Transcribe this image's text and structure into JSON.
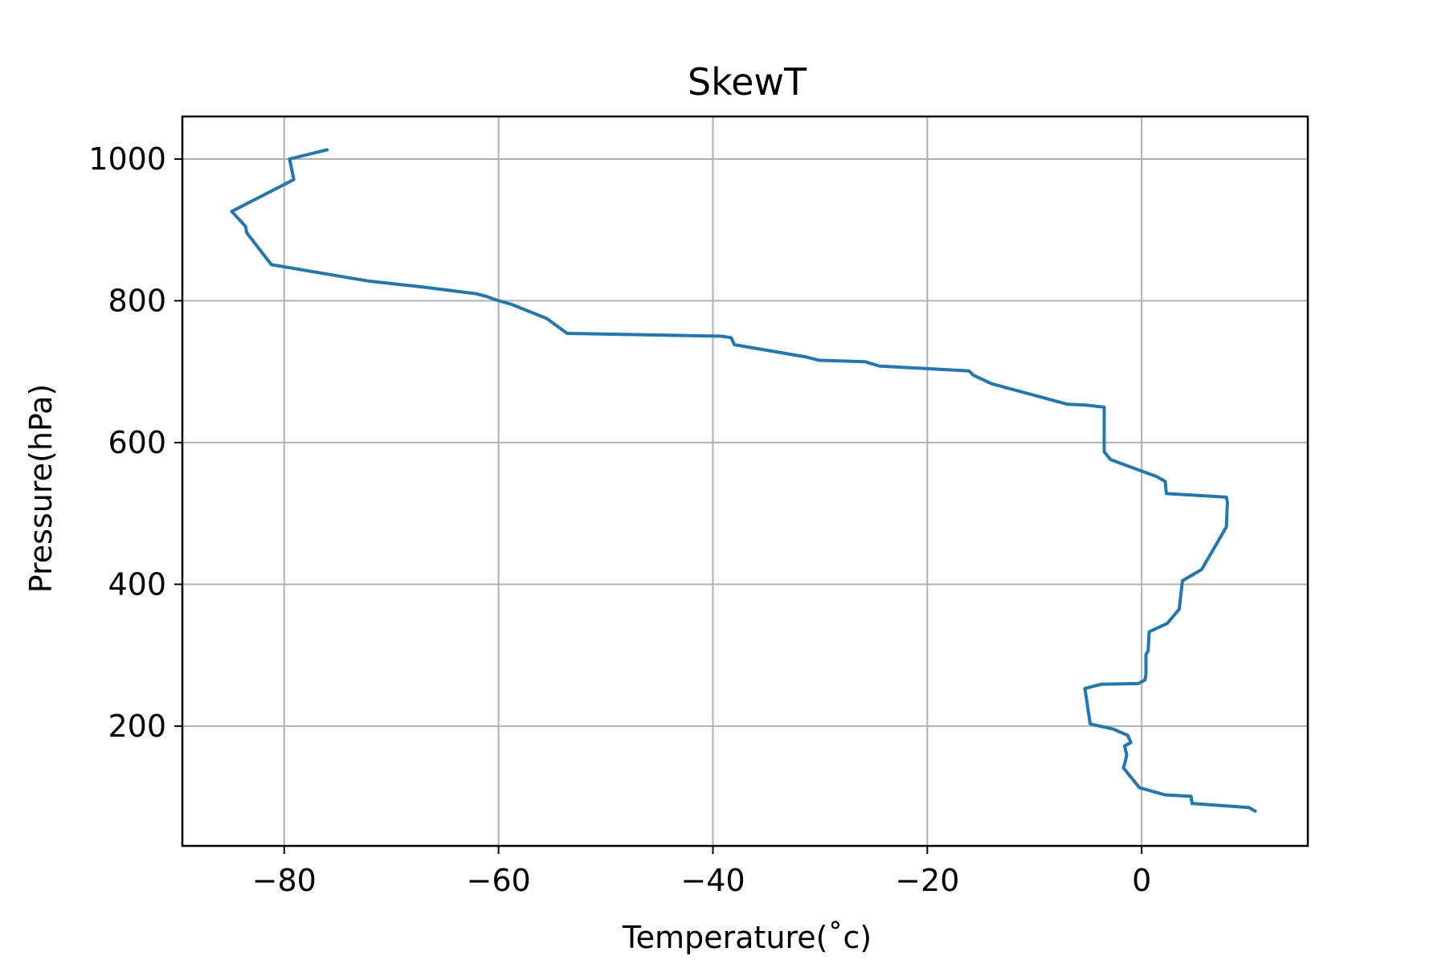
{
  "chart_data": {
    "type": "line",
    "title": "SkewT",
    "xlabel": "Temperature(˚c)",
    "ylabel": "Pressure(hPa)",
    "xlim": [
      -89.5,
      15.5
    ],
    "ylim": [
      31,
      1060
    ],
    "xticks": [
      -80,
      -60,
      -40,
      -20,
      0
    ],
    "xtick_labels": [
      "−80",
      "−60",
      "−40",
      "−20",
      "0"
    ],
    "yticks": [
      200,
      400,
      600,
      800,
      1000
    ],
    "ytick_labels": [
      "200",
      "400",
      "600",
      "800",
      "1000"
    ],
    "grid": true,
    "series": [
      {
        "color": "#1f77b4",
        "points": [
          [
            -76.0,
            1013
          ],
          [
            -79.5,
            1000
          ],
          [
            -79.1,
            971
          ],
          [
            -84.9,
            926
          ],
          [
            -84.1,
            913
          ],
          [
            -83.6,
            905
          ],
          [
            -83.5,
            896
          ],
          [
            -81.2,
            851
          ],
          [
            -72.2,
            828
          ],
          [
            -67.4,
            820
          ],
          [
            -62.1,
            810
          ],
          [
            -61.1,
            806
          ],
          [
            -60.2,
            801
          ],
          [
            -58.8,
            795
          ],
          [
            -55.5,
            775
          ],
          [
            -53.6,
            754
          ],
          [
            -39.2,
            750
          ],
          [
            -38.3,
            748
          ],
          [
            -38.0,
            738
          ],
          [
            -31.4,
            721
          ],
          [
            -30.1,
            716
          ],
          [
            -25.8,
            714
          ],
          [
            -24.5,
            708
          ],
          [
            -16.1,
            701
          ],
          [
            -15.7,
            695
          ],
          [
            -14.0,
            683
          ],
          [
            -6.9,
            654
          ],
          [
            -5.3,
            653
          ],
          [
            -3.5,
            650
          ],
          [
            -3.5,
            587
          ],
          [
            -2.9,
            576
          ],
          [
            1.4,
            552
          ],
          [
            2.2,
            545
          ],
          [
            2.3,
            528
          ],
          [
            7.9,
            523
          ],
          [
            8.0,
            516
          ],
          [
            7.9,
            481
          ],
          [
            5.6,
            421
          ],
          [
            3.8,
            405
          ],
          [
            3.5,
            365
          ],
          [
            2.4,
            345
          ],
          [
            0.7,
            333
          ],
          [
            0.6,
            306
          ],
          [
            0.4,
            301
          ],
          [
            0.4,
            273
          ],
          [
            0.3,
            265
          ],
          [
            -0.3,
            260
          ],
          [
            -3.8,
            259
          ],
          [
            -5.3,
            253
          ],
          [
            -4.8,
            203
          ],
          [
            -2.7,
            196
          ],
          [
            -1.3,
            187
          ],
          [
            -1.0,
            177
          ],
          [
            -1.6,
            172
          ],
          [
            -1.4,
            160
          ],
          [
            -1.5,
            152
          ],
          [
            -1.7,
            141
          ],
          [
            -0.2,
            113
          ],
          [
            2.2,
            103
          ],
          [
            4.6,
            101
          ],
          [
            4.7,
            91
          ],
          [
            10.0,
            85
          ],
          [
            10.6,
            80
          ]
        ]
      }
    ]
  }
}
